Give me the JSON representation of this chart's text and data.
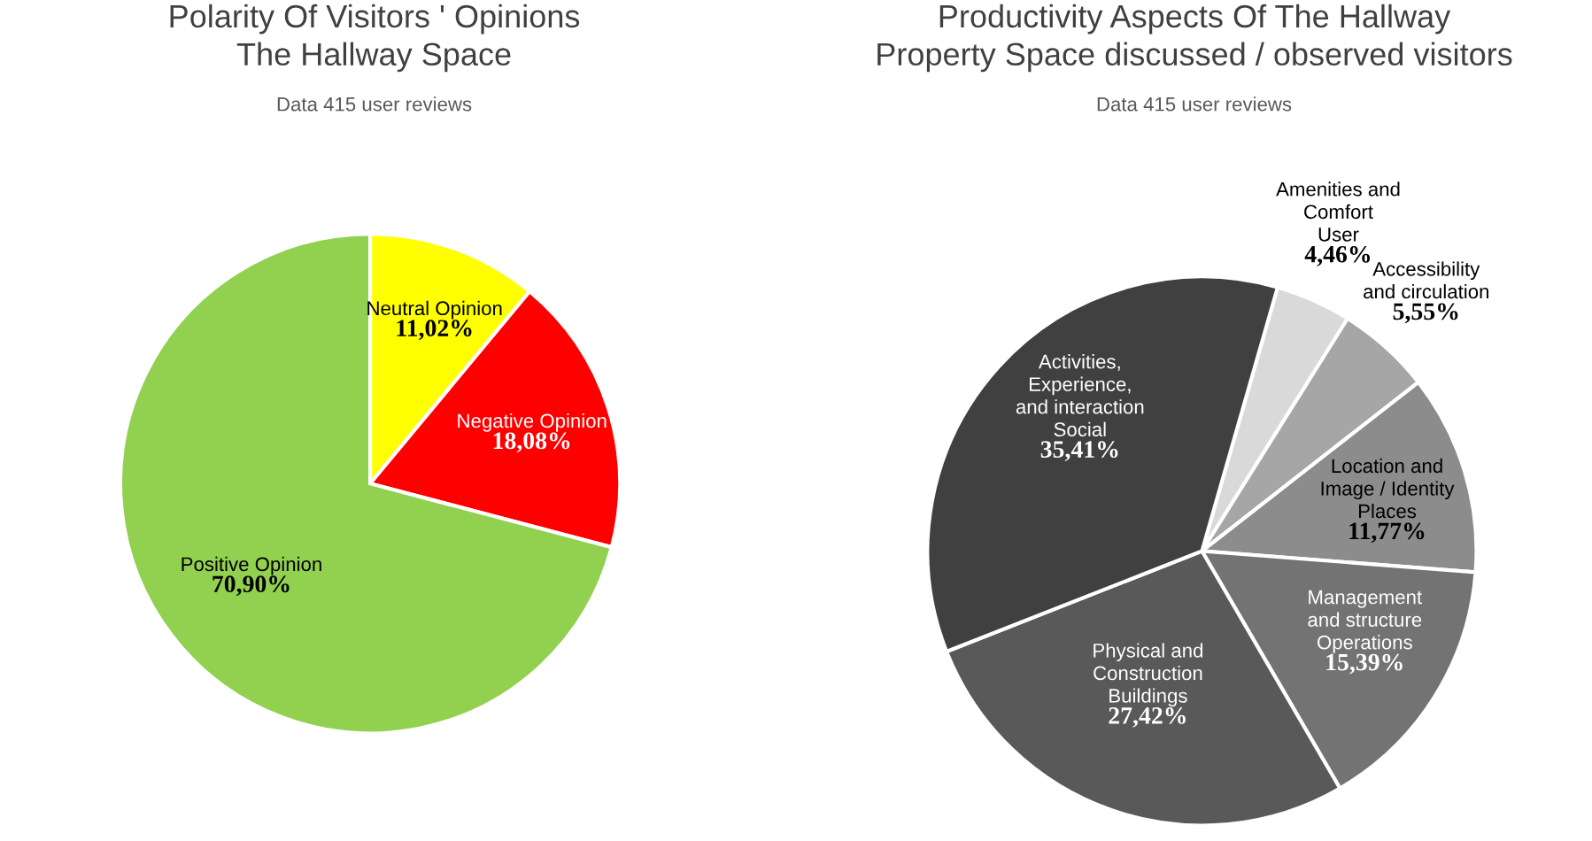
{
  "chart_data": [
    {
      "type": "pie",
      "title": "Polarity Of Visitors ' Opinions\nThe Hallway Space",
      "subtitle": "Data 415 user reviews",
      "categories": [
        "Neutral Opinion",
        "Negative Opinion",
        "Positive Opinion"
      ],
      "values": [
        11.02,
        18.08,
        70.9
      ],
      "value_labels": [
        "11,02%",
        "18,08%",
        "70,90%"
      ],
      "colors": [
        "#ffff00",
        "#ff0000",
        "#92d050"
      ]
    },
    {
      "type": "pie",
      "title": "Productivity Aspects Of The Hallway\nProperty Space discussed / observed visitors",
      "subtitle": "Data 415 user reviews",
      "categories": [
        "Amenities and\nComfort\nUser",
        "Accessibility\nand circulation",
        "Location and\nImage / Identity\nPlaces",
        "Management\nand structure\nOperations",
        "Physical and\nConstruction\nBuildings",
        "Activities,\nExperience,\nand interaction\nSocial"
      ],
      "values": [
        4.46,
        5.55,
        11.77,
        15.39,
        27.42,
        35.41
      ],
      "value_labels": [
        "4,46%",
        "5,55%",
        "11,77%",
        "15,39%",
        "27,42%",
        "35,41%"
      ],
      "colors": [
        "#d9d9d9",
        "#a6a6a6",
        "#8c8c8c",
        "#737373",
        "#595959",
        "#404040"
      ]
    }
  ]
}
